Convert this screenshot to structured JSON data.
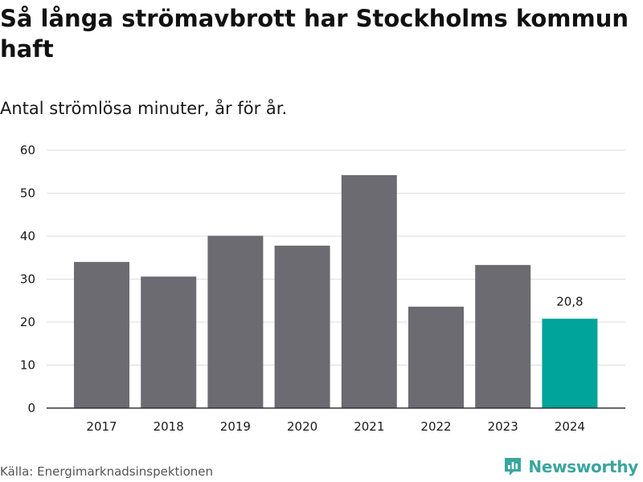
{
  "chart_data": {
    "type": "bar",
    "title": "Så långa strömavbrott har Stockholms kommun haft",
    "subtitle": "Antal strömlösa minuter, år för år.",
    "categories": [
      "2017",
      "2018",
      "2019",
      "2020",
      "2021",
      "2022",
      "2023",
      "2024"
    ],
    "values": [
      34.0,
      30.6,
      40.1,
      37.8,
      54.2,
      23.6,
      33.3,
      20.8
    ],
    "highlight_index": 7,
    "highlight_label": "20,8",
    "ylim": [
      0,
      60
    ],
    "yticks": [
      0,
      10,
      20,
      30,
      40,
      50,
      60
    ],
    "xlabel": "",
    "ylabel": "",
    "grid": true,
    "colors": {
      "bar": "#6c6b71",
      "highlight": "#00a49a",
      "grid": "#dddddd",
      "axis": "#333333"
    }
  },
  "footer": {
    "source": "Källa: Energimarknadsinspektionen",
    "brand": "Newsworthy",
    "brand_icon": "newsworthy-logo-icon",
    "brand_color": "#3aa6a0"
  }
}
